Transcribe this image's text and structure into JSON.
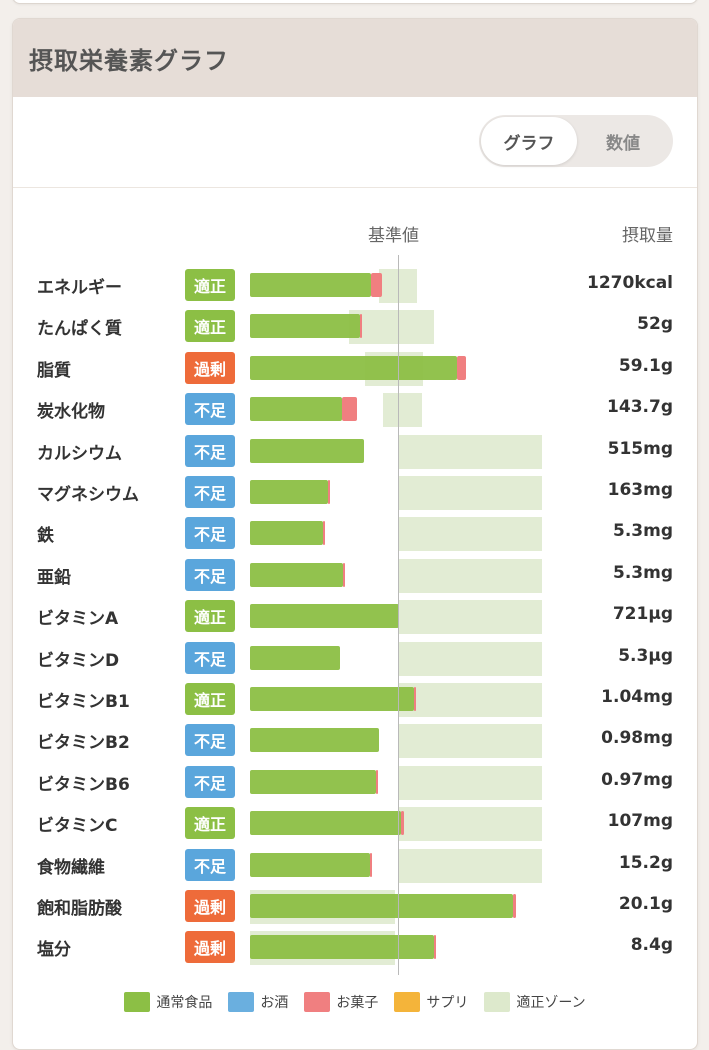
{
  "header": {
    "title": "摂取栄養素グラフ"
  },
  "toggle": {
    "graph_label": "グラフ",
    "number_label": "数値"
  },
  "chart": {
    "ref_label": "基準値",
    "amount_label": "摂取量"
  },
  "colors": {
    "normal_food": "#8cbf45",
    "alcohol": "#6aafdf",
    "sweets": "#f07f80",
    "supplement": "#f4b43a",
    "zone": "#dde9cc",
    "status_ok": "#8cbf45",
    "status_over": "#ee6b3a",
    "status_under": "#5aa6dc"
  },
  "legend": [
    {
      "label": "通常食品",
      "color": "#8cbf45"
    },
    {
      "label": "お酒",
      "color": "#6aafdf"
    },
    {
      "label": "お菓子",
      "color": "#f07f80"
    },
    {
      "label": "サプリ",
      "color": "#f4b43a"
    },
    {
      "label": "適正ゾーン",
      "color": "#dde9cc"
    }
  ],
  "chart_data": {
    "type": "bar",
    "orientation": "horizontal",
    "reference_value": 1.0,
    "unit_of_values": "fraction of reference (基準値)",
    "rows": [
      {
        "name": "エネルギー",
        "status": "適正",
        "value_label": "1270kcal",
        "normal": 0.82,
        "sweets": 0.07,
        "zone": [
          0.87,
          1.13
        ]
      },
      {
        "name": "たんぱく質",
        "status": "適正",
        "value_label": "52g",
        "normal": 0.74,
        "sweets": 0.01,
        "zone": [
          0.67,
          1.24
        ]
      },
      {
        "name": "脂質",
        "status": "過剰",
        "value_label": "59.1g",
        "normal": 1.4,
        "sweets": 0.06,
        "zone": [
          0.78,
          1.17
        ]
      },
      {
        "name": "炭水化物",
        "status": "不足",
        "value_label": "143.7g",
        "normal": 0.62,
        "sweets": 0.1,
        "zone": [
          0.9,
          1.16
        ]
      },
      {
        "name": "カルシウム",
        "status": "不足",
        "value_label": "515mg",
        "normal": 0.77,
        "sweets": 0.0,
        "zone": [
          1.0,
          1.97
        ]
      },
      {
        "name": "マグネシウム",
        "status": "不足",
        "value_label": "163mg",
        "normal": 0.53,
        "sweets": 0.01,
        "zone": [
          1.0,
          1.97
        ]
      },
      {
        "name": "鉄",
        "status": "不足",
        "value_label": "5.3mg",
        "normal": 0.49,
        "sweets": 0.01,
        "zone": [
          1.0,
          1.97
        ]
      },
      {
        "name": "亜鉛",
        "status": "不足",
        "value_label": "5.3mg",
        "normal": 0.63,
        "sweets": 0.01,
        "zone": [
          1.0,
          1.97
        ]
      },
      {
        "name": "ビタミンA",
        "status": "適正",
        "value_label": "721μg",
        "normal": 1.01,
        "sweets": 0.0,
        "zone": [
          1.0,
          1.97
        ]
      },
      {
        "name": "ビタミンD",
        "status": "不足",
        "value_label": "5.3μg",
        "normal": 0.61,
        "sweets": 0.0,
        "zone": [
          1.0,
          1.97
        ]
      },
      {
        "name": "ビタミンB1",
        "status": "適正",
        "value_label": "1.04mg",
        "normal": 1.11,
        "sweets": 0.01,
        "zone": [
          1.0,
          1.97
        ]
      },
      {
        "name": "ビタミンB2",
        "status": "不足",
        "value_label": "0.98mg",
        "normal": 0.87,
        "sweets": 0.0,
        "zone": [
          1.0,
          1.97
        ]
      },
      {
        "name": "ビタミンB6",
        "status": "不足",
        "value_label": "0.97mg",
        "normal": 0.85,
        "sweets": 0.01,
        "zone": [
          1.0,
          1.97
        ]
      },
      {
        "name": "ビタミンC",
        "status": "適正",
        "value_label": "107mg",
        "normal": 1.02,
        "sweets": 0.02,
        "zone": [
          1.0,
          1.97
        ]
      },
      {
        "name": "食物繊維",
        "status": "不足",
        "value_label": "15.2g",
        "normal": 0.81,
        "sweets": 0.01,
        "zone": [
          1.0,
          1.97
        ]
      },
      {
        "name": "飽和脂肪酸",
        "status": "過剰",
        "value_label": "20.1g",
        "normal": 1.78,
        "sweets": 0.02,
        "zone": [
          0.0,
          0.98
        ]
      },
      {
        "name": "塩分",
        "status": "過剰",
        "value_label": "8.4g",
        "normal": 1.24,
        "sweets": 0.02,
        "zone": [
          0.0,
          0.98
        ]
      }
    ]
  }
}
